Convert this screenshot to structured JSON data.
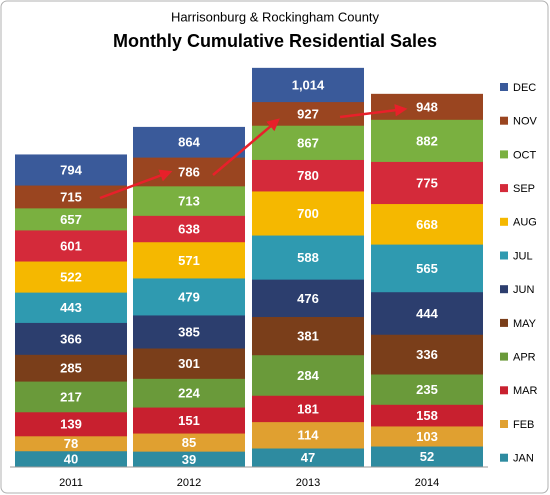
{
  "chart_data": {
    "type": "overlapping-bar",
    "title": "Monthly Cumulative Residential Sales",
    "subtitle": "Harrisonburg & Rockingham County",
    "categories": [
      "2011",
      "2012",
      "2013",
      "2014"
    ],
    "ylim": [
      0,
      1100
    ],
    "legend": "right",
    "series": [
      {
        "name": "JAN",
        "color": "#2e8ba0",
        "values": [
          40,
          39,
          47,
          52
        ]
      },
      {
        "name": "FEB",
        "color": "#e0a030",
        "values": [
          78,
          85,
          114,
          103
        ]
      },
      {
        "name": "MAR",
        "color": "#c8202f",
        "values": [
          139,
          151,
          181,
          158
        ]
      },
      {
        "name": "APR",
        "color": "#6a9a3a",
        "values": [
          217,
          224,
          284,
          235
        ]
      },
      {
        "name": "MAY",
        "color": "#7a3e1a",
        "values": [
          285,
          301,
          381,
          336
        ]
      },
      {
        "name": "JUN",
        "color": "#2c3e6e",
        "values": [
          366,
          385,
          476,
          444
        ]
      },
      {
        "name": "JUL",
        "color": "#2f9ab0",
        "values": [
          443,
          479,
          588,
          565
        ]
      },
      {
        "name": "AUG",
        "color": "#f5b800",
        "values": [
          522,
          571,
          700,
          668
        ]
      },
      {
        "name": "SEP",
        "color": "#d42a3a",
        "values": [
          601,
          638,
          780,
          775
        ]
      },
      {
        "name": "OCT",
        "color": "#7ab040",
        "values": [
          657,
          713,
          867,
          882
        ]
      },
      {
        "name": "NOV",
        "color": "#9a4520",
        "values": [
          715,
          786,
          927,
          948
        ]
      },
      {
        "name": "DEC",
        "color": "#3a5a9a",
        "values": [
          794,
          864,
          1014,
          null
        ],
        "value_labels": [
          "794",
          "864",
          "1,014",
          null
        ]
      }
    ]
  }
}
